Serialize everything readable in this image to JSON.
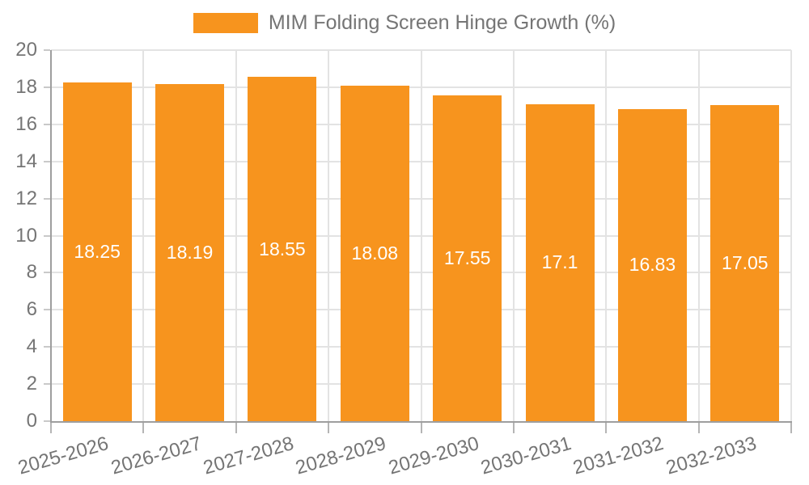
{
  "legend": {
    "label": "MIM Folding Screen Hinge Growth (%)",
    "swatch_color": "#F7941E"
  },
  "colors": {
    "bar": "#F7941E",
    "grid": "#E3E3E3",
    "axis": "#9E9E9E",
    "tick_text": "#757575",
    "value_label": "#FFFFFF"
  },
  "chart_data": {
    "type": "bar",
    "categories": [
      "2025-2026",
      "2026-2027",
      "2027-2028",
      "2028-2029",
      "2029-2030",
      "2030-2031",
      "2031-2032",
      "2032-2033"
    ],
    "values": [
      18.25,
      18.19,
      18.55,
      18.08,
      17.55,
      17.1,
      16.83,
      17.05
    ],
    "title": "",
    "xlabel": "",
    "ylabel": "",
    "ylim": [
      0,
      20
    ],
    "ytick_step": 2,
    "grid": true,
    "legend_position": "top",
    "legend_label": "MIM Folding Screen Hinge Growth (%)",
    "value_labels": "inside-center",
    "x_label_rotation_deg": -16
  }
}
